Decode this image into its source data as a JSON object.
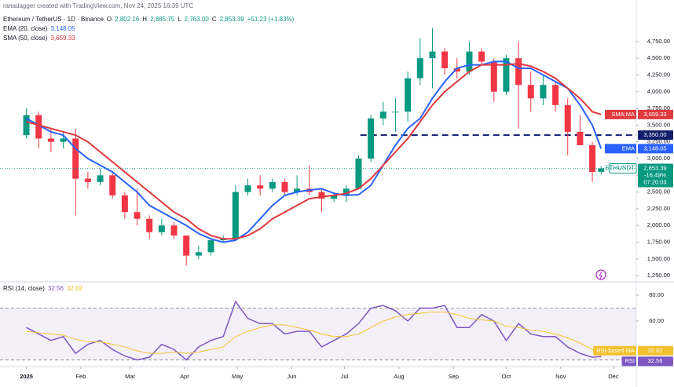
{
  "chart_data": [
    {
      "type": "candlestick",
      "credit": "ranadagger created with TradingView.com, Nov 24, 2025 16:39 UTC",
      "title": "Ethereum / TetherUS · 1D · Binance",
      "legend_values": [
        {
          "key": "O",
          "text": "2,802.16"
        },
        {
          "key": "H",
          "text": "2,885.75"
        },
        {
          "key": "L",
          "text": "2,763.00"
        },
        {
          "key": "C",
          "text": "2,853.39"
        }
      ],
      "change": "+51.23 (+1.83%)",
      "up_color": "#089981",
      "down_color": "#f23645",
      "x": [
        0,
        7,
        14,
        21,
        28,
        35,
        42,
        49,
        56,
        63,
        70,
        77,
        84,
        91,
        98,
        105,
        112,
        119,
        126,
        133,
        140,
        147,
        154,
        161,
        168,
        175,
        182,
        189,
        196,
        203,
        210,
        217,
        224,
        231,
        238,
        245,
        252,
        259,
        266,
        273,
        280,
        287,
        294,
        301,
        308,
        315,
        322,
        327
      ],
      "open": [
        3350,
        3650,
        3300,
        3250,
        3300,
        2700,
        2650,
        2750,
        2450,
        2200,
        2100,
        1900,
        2000,
        1850,
        1550,
        1600,
        1780,
        1800,
        2500,
        2600,
        2550,
        2650,
        2500,
        2550,
        2500,
        2400,
        2450,
        2550,
        3000,
        3600,
        3700,
        3700,
        4200,
        4500,
        4600,
        4350,
        4300,
        4600,
        4450,
        4000,
        4500,
        4100,
        3900,
        4100,
        3800,
        3400,
        3200,
        2802.16
      ],
      "high": [
        3750,
        3700,
        3450,
        3400,
        3450,
        2800,
        2850,
        2800,
        2500,
        2550,
        2150,
        2100,
        2050,
        1850,
        1700,
        1800,
        1850,
        2600,
        2700,
        2750,
        2700,
        2700,
        2750,
        2900,
        2550,
        2500,
        2600,
        3050,
        3650,
        3850,
        3900,
        4300,
        4800,
        4950,
        4650,
        4500,
        4750,
        4650,
        4500,
        4550,
        4750,
        4300,
        4250,
        4150,
        3900,
        3650,
        3250,
        2885.75
      ],
      "low": [
        3300,
        3150,
        3100,
        3150,
        2150,
        2550,
        2600,
        2400,
        2100,
        2000,
        1800,
        1850,
        1800,
        1400,
        1500,
        1550,
        1750,
        1780,
        2450,
        2450,
        2500,
        2450,
        2450,
        2450,
        2200,
        2350,
        2350,
        2550,
        2950,
        3500,
        3400,
        3550,
        4100,
        4050,
        4250,
        4200,
        4250,
        4400,
        3850,
        3950,
        3450,
        3700,
        3800,
        3700,
        3050,
        3200,
        2650,
        2763
      ],
      "close": [
        3650,
        3300,
        3250,
        3300,
        2700,
        2650,
        2750,
        2450,
        2200,
        2100,
        1900,
        2000,
        1850,
        1550,
        1600,
        1780,
        1800,
        2500,
        2600,
        2550,
        2650,
        2500,
        2550,
        2500,
        2400,
        2450,
        2550,
        3000,
        3600,
        3700,
        3700,
        4200,
        4500,
        4600,
        4350,
        4300,
        4600,
        4450,
        4000,
        4500,
        4100,
        3900,
        4100,
        3800,
        3400,
        3200,
        2800,
        2853.39
      ],
      "overlays": [
        {
          "name": "EMA (20, close)",
          "tag": "EMA",
          "color": "#2962ff",
          "value_label": "3,148.05",
          "values": [
            3600,
            3500,
            3400,
            3350,
            3150,
            3000,
            2900,
            2800,
            2650,
            2500,
            2300,
            2200,
            2100,
            2000,
            1880,
            1800,
            1750,
            1780,
            1900,
            2100,
            2300,
            2450,
            2500,
            2530,
            2550,
            2480,
            2450,
            2460,
            2600,
            2900,
            3200,
            3450,
            3600,
            3900,
            4150,
            4350,
            4400,
            4400,
            4450,
            4450,
            4350,
            4350,
            4250,
            4150,
            4050,
            3800,
            3500,
            3148.05
          ]
        },
        {
          "name": "SMA (50, close)",
          "tag": "SMA:MA",
          "color": "#e0393e",
          "value_label": "3,659.33",
          "values": [
            3550,
            3500,
            3450,
            3400,
            3350,
            3250,
            3100,
            2950,
            2800,
            2650,
            2500,
            2350,
            2200,
            2100,
            1950,
            1850,
            1800,
            1800,
            1850,
            1950,
            2100,
            2200,
            2300,
            2400,
            2430,
            2450,
            2480,
            2550,
            2700,
            2900,
            3100,
            3300,
            3550,
            3800,
            4000,
            4150,
            4300,
            4400,
            4400,
            4400,
            4420,
            4380,
            4300,
            4200,
            4050,
            3900,
            3700,
            3659.33
          ]
        }
      ],
      "hline": {
        "value": 3350,
        "label": "3,350.00",
        "color": "#131d6b"
      },
      "last_tag": {
        "name": "ETHUSDT",
        "price": "2,853.39",
        "change": "-16.49%",
        "countdown": "07:20:03"
      },
      "xlim": [
        -15,
        347
      ],
      "xticks": [
        {
          "value": 0,
          "label": "2025"
        },
        {
          "value": 31,
          "label": "Feb"
        },
        {
          "value": 59,
          "label": "Mar"
        },
        {
          "value": 90,
          "label": "Apr"
        },
        {
          "value": 120,
          "label": "May"
        },
        {
          "value": 151,
          "label": "Jun"
        },
        {
          "value": 181,
          "label": "Jul"
        },
        {
          "value": 212,
          "label": "Aug"
        },
        {
          "value": 243,
          "label": "Sep"
        },
        {
          "value": 273,
          "label": "Oct"
        },
        {
          "value": 304,
          "label": "Nov"
        },
        {
          "value": 334,
          "label": "Dec"
        }
      ],
      "ylim": [
        1170,
        5370
      ],
      "yticks": [
        {
          "value": 1250,
          "label": "1,250.00"
        },
        {
          "value": 1500,
          "label": "1,500.00"
        },
        {
          "value": 1750,
          "label": "1,750.00"
        },
        {
          "value": 2000,
          "label": "2,000.00"
        },
        {
          "value": 2250,
          "label": "2,250.00"
        },
        {
          "value": 2500,
          "label": "2,500.00"
        },
        {
          "value": 2750,
          "label": "2,750.00"
        },
        {
          "value": 3000,
          "label": "3,000.00"
        },
        {
          "value": 3250,
          "label": "3,250.00"
        },
        {
          "value": 3500,
          "label": "3,500.00"
        },
        {
          "value": 3750,
          "label": "3,750.00"
        },
        {
          "value": 4000,
          "label": "4,000.00"
        },
        {
          "value": 4250,
          "label": "4,250.00"
        },
        {
          "value": 4500,
          "label": "4,500.00"
        },
        {
          "value": 4750,
          "label": "4,750.00"
        }
      ]
    },
    {
      "type": "line",
      "title": "RSI (14, close)",
      "series": [
        {
          "name": "RSI",
          "tag": "RSI",
          "color": "#7e57c2",
          "value_label": "32.56",
          "values": [
            55,
            50,
            45,
            48,
            35,
            42,
            45,
            38,
            33,
            30,
            32,
            42,
            38,
            30,
            40,
            45,
            48,
            75,
            62,
            58,
            58,
            50,
            52,
            52,
            40,
            45,
            50,
            58,
            70,
            72,
            68,
            60,
            70,
            70,
            72,
            55,
            55,
            65,
            60,
            45,
            58,
            50,
            48,
            48,
            40,
            35,
            32,
            32.56
          ]
        },
        {
          "name": "RSI-based MA",
          "tag": "RSI-based MA",
          "color": "#f2c12e",
          "value_label": "32.82",
          "values": [
            52,
            51,
            50,
            49,
            46,
            44,
            44,
            42,
            40,
            37,
            35,
            35,
            36,
            35,
            36,
            38,
            40,
            48,
            52,
            55,
            57,
            57,
            55,
            53,
            50,
            48,
            48,
            50,
            55,
            60,
            63,
            65,
            66,
            67,
            67,
            65,
            62,
            61,
            60,
            56,
            55,
            53,
            52,
            50,
            47,
            43,
            38,
            32.82
          ]
        }
      ],
      "bands": [
        30,
        70
      ],
      "ylim": [
        24.8,
        88.5
      ],
      "yticks": [
        {
          "value": 80,
          "label": "80.00"
        },
        {
          "value": 60,
          "label": "60.00"
        }
      ]
    }
  ]
}
